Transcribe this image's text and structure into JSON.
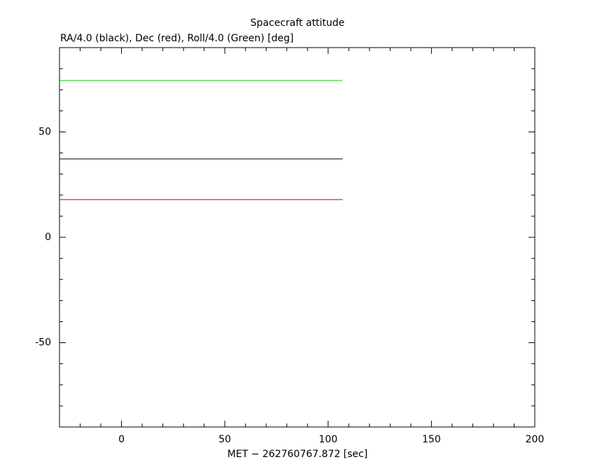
{
  "chart_data": {
    "type": "line",
    "title": "Spacecraft attitude",
    "y_label": "RA/4.0 (black), Dec (red), Roll/4.0 (Green) [deg]",
    "x_label": "MET − 262760767.872 [sec]",
    "x": [
      -30,
      107
    ],
    "series": [
      {
        "name": "RA/4.0",
        "color": "#000000",
        "values": [
          37.2,
          37.2
        ]
      },
      {
        "name": "Dec",
        "color": "#c00000",
        "values": [
          17.9,
          17.9
        ]
      },
      {
        "name": "Roll/4.0",
        "color": "#00cc00",
        "values": [
          74.4,
          74.4
        ]
      }
    ],
    "xlim": [
      -30,
      200
    ],
    "ylim": [
      -90,
      90
    ],
    "xticks": [
      0,
      50,
      100,
      150,
      200
    ],
    "yticks": [
      -50,
      0,
      50
    ],
    "xminorticks": [
      -20,
      -10,
      10,
      20,
      30,
      40,
      60,
      70,
      80,
      90,
      110,
      120,
      130,
      140,
      160,
      170,
      180,
      190
    ],
    "yminorticks": [
      -80,
      -70,
      -60,
      -40,
      -30,
      -20,
      -10,
      10,
      20,
      30,
      40,
      60,
      70,
      80
    ]
  }
}
